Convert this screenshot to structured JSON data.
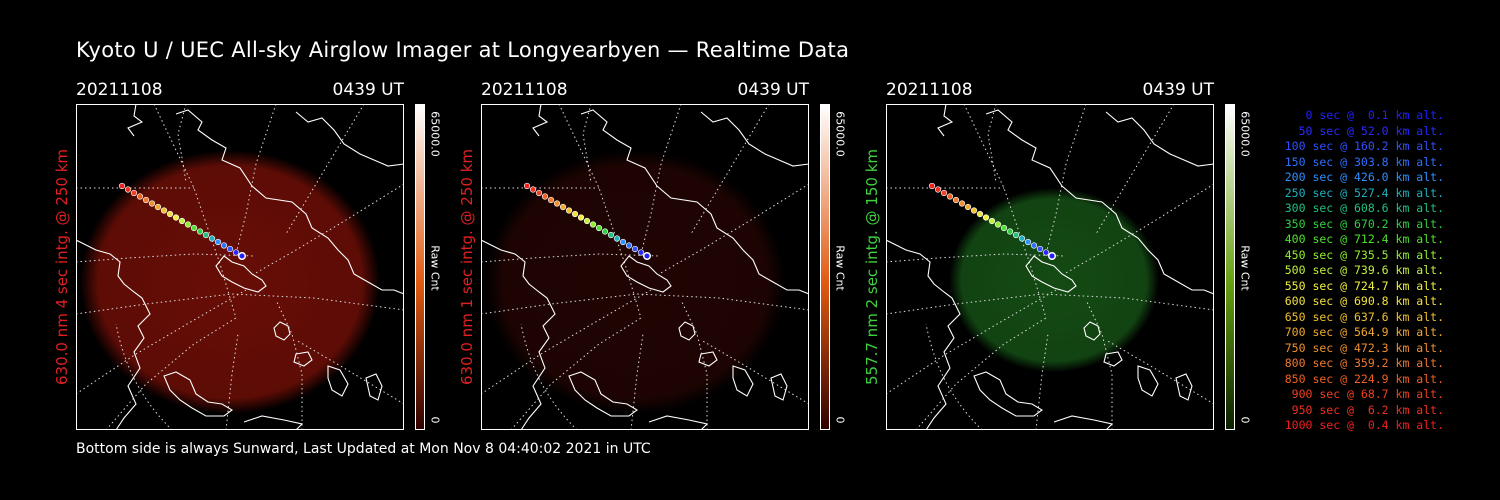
{
  "title": "Kyoto U / UEC All-sky Airglow Imager at Longyearbyen — Realtime Data",
  "panels": [
    {
      "date": "20211108",
      "time": "0439 UT",
      "side_label": "630.0 nm 4 sec intg. @ 250 km",
      "side_color": "#e02020",
      "glow_color": "#8a1208",
      "glow_opacity": 0.75,
      "cbar_max": "65000.0",
      "cbar_label": "Raw Cnt",
      "cbar_min": "0",
      "cbar_top": "#ffffff",
      "cbar_mid": "#e05a10",
      "cbar_bottom": "#300000"
    },
    {
      "date": "20211108",
      "time": "0439 UT",
      "side_label": "630.0 nm 1 sec intg. @ 250 km",
      "side_color": "#e02020",
      "glow_color": "#3a0805",
      "glow_opacity": 0.55,
      "cbar_max": "65000.0",
      "cbar_label": "Raw Cnt",
      "cbar_min": "0",
      "cbar_top": "#ffffff",
      "cbar_mid": "#e05a10",
      "cbar_bottom": "#300000"
    },
    {
      "date": "20211108",
      "time": "0439 UT",
      "side_label": "557.7 nm 2 sec intg. @ 150 km",
      "side_color": "#40d040",
      "glow_color": "#1c6a1c",
      "glow_opacity": 0.7,
      "cbar_max": "65000.0",
      "cbar_label": "Raw Cnt",
      "cbar_min": "0",
      "cbar_top": "#ffffff",
      "cbar_mid": "#66a010",
      "cbar_bottom": "#0a2000"
    }
  ],
  "trajectory": [
    {
      "t": "0 sec",
      "alt": "0.1 km alt.",
      "color": "#2020ff"
    },
    {
      "t": "50 sec",
      "alt": "52.0 km alt.",
      "color": "#2a2aff"
    },
    {
      "t": "100 sec",
      "alt": "160.2 km alt.",
      "color": "#3050ff"
    },
    {
      "t": "150 sec",
      "alt": "303.8 km alt.",
      "color": "#3070ff"
    },
    {
      "t": "200 sec",
      "alt": "426.0 km alt.",
      "color": "#3090ff"
    },
    {
      "t": "250 sec",
      "alt": "527.4 km alt.",
      "color": "#20b0c0"
    },
    {
      "t": "300 sec",
      "alt": "608.6 km alt.",
      "color": "#20c080"
    },
    {
      "t": "350 sec",
      "alt": "670.2 km alt.",
      "color": "#30d040"
    },
    {
      "t": "400 sec",
      "alt": "712.4 km alt.",
      "color": "#50e030"
    },
    {
      "t": "450 sec",
      "alt": "735.5 km alt.",
      "color": "#90f030"
    },
    {
      "t": "500 sec",
      "alt": "739.6 km alt.",
      "color": "#c0f040"
    },
    {
      "t": "550 sec",
      "alt": "724.7 km alt.",
      "color": "#f0f040"
    },
    {
      "t": "600 sec",
      "alt": "690.8 km alt.",
      "color": "#f0e040"
    },
    {
      "t": "650 sec",
      "alt": "637.6 km alt.",
      "color": "#f0c030"
    },
    {
      "t": "700 sec",
      "alt": "564.9 km alt.",
      "color": "#f0a830"
    },
    {
      "t": "750 sec",
      "alt": "472.3 km alt.",
      "color": "#f09030"
    },
    {
      "t": "800 sec",
      "alt": "359.2 km alt.",
      "color": "#f07830"
    },
    {
      "t": "850 sec",
      "alt": "224.9 km alt.",
      "color": "#f06020"
    },
    {
      "t": "900 sec",
      "alt": "68.7 km alt.",
      "color": "#f04020"
    },
    {
      "t": "950 sec",
      "alt": "6.2 km alt.",
      "color": "#f03020"
    },
    {
      "t": "1000 sec",
      "alt": "0.4 km alt.",
      "color": "#f02020"
    }
  ],
  "footer": "Bottom side is always Sunward, Last Updated at Mon Nov  8 04:40:02 2021 in UTC"
}
